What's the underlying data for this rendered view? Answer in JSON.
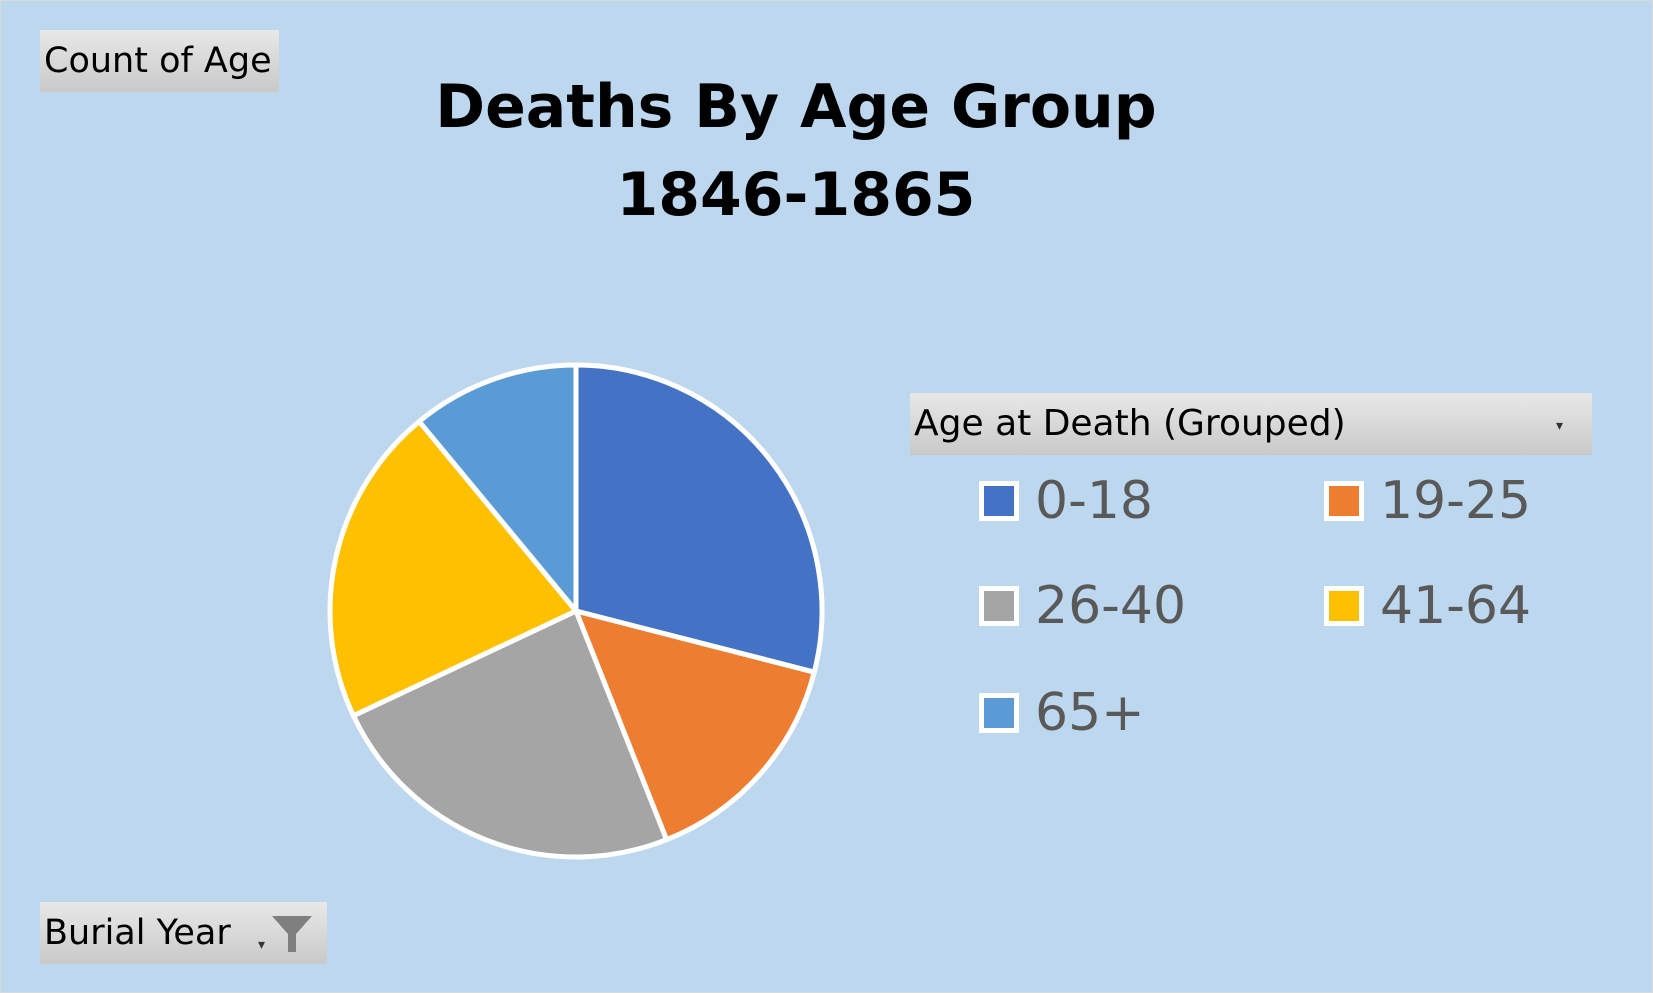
{
  "field_buttons": {
    "values": "Count of Age",
    "filter": "Burial Year",
    "legend": "Age at Death (Grouped)"
  },
  "icons": {
    "filter": "funnel-icon",
    "dropdown": "chevron-down-icon"
  },
  "chart_data": {
    "type": "pie",
    "title_line1": "Deaths By Age Group",
    "title_line2": "1846-1865",
    "categories": [
      "0-18",
      "19-25",
      "26-40",
      "41-64",
      "65+"
    ],
    "values": [
      29,
      15,
      24,
      21,
      11
    ],
    "colors": [
      "#4472C4",
      "#ED7D31",
      "#A5A5A5",
      "#FFC000",
      "#5B9BD5"
    ],
    "start_angle_deg": 0,
    "direction": "clockwise",
    "legend_position": "right"
  }
}
